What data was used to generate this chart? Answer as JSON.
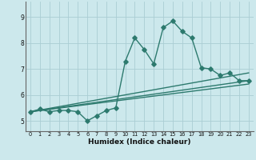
{
  "title": "",
  "xlabel": "Humidex (Indice chaleur)",
  "bg_color": "#cce8ec",
  "grid_color": "#aacdd4",
  "line_color": "#2d7a6e",
  "xlim": [
    -0.5,
    23.5
  ],
  "ylim": [
    4.6,
    9.6
  ],
  "yticks": [
    5,
    6,
    7,
    8,
    9
  ],
  "xticks": [
    0,
    1,
    2,
    3,
    4,
    5,
    6,
    7,
    8,
    9,
    10,
    11,
    12,
    13,
    14,
    15,
    16,
    17,
    18,
    19,
    20,
    21,
    22,
    23
  ],
  "series1_x": [
    0,
    1,
    2,
    3,
    4,
    5,
    6,
    7,
    8,
    9,
    10,
    11,
    12,
    13,
    14,
    15,
    16,
    17,
    18,
    19,
    20,
    21,
    22,
    23
  ],
  "series1_y": [
    5.35,
    5.45,
    5.35,
    5.4,
    5.4,
    5.35,
    5.0,
    5.2,
    5.4,
    5.5,
    7.3,
    8.2,
    7.75,
    7.2,
    8.6,
    8.85,
    8.45,
    8.2,
    7.05,
    7.0,
    6.75,
    6.85,
    6.55,
    6.55
  ],
  "series2_x": [
    0,
    23
  ],
  "series2_y": [
    5.35,
    6.85
  ],
  "series3_x": [
    0,
    23
  ],
  "series3_y": [
    5.35,
    6.55
  ],
  "series4_x": [
    0,
    23
  ],
  "series4_y": [
    5.35,
    6.42
  ],
  "markersize": 2.8,
  "linewidth": 1.0
}
